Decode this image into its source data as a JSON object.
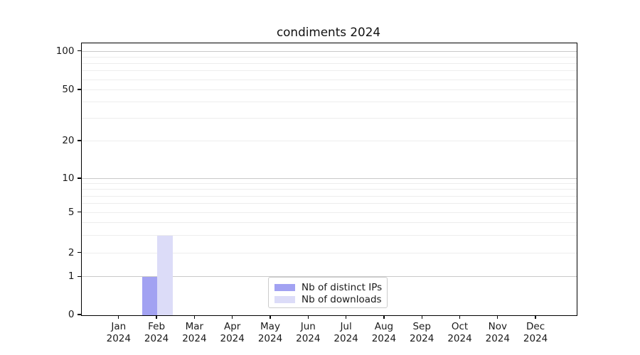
{
  "chart_data": {
    "type": "bar",
    "title": "condiments 2024",
    "categories": [
      "Jan",
      "Feb",
      "Mar",
      "Apr",
      "May",
      "Jun",
      "Jul",
      "Aug",
      "Sep",
      "Oct",
      "Nov",
      "Dec"
    ],
    "category_year": "2024",
    "series": [
      {
        "name": "Nb of distinct IPs",
        "color": "#a2a2f2",
        "values": [
          0,
          1,
          0,
          0,
          0,
          0,
          0,
          0,
          0,
          0,
          0,
          0
        ]
      },
      {
        "name": "Nb of downloads",
        "color": "#dcdcf8",
        "values": [
          0,
          3,
          0,
          0,
          0,
          0,
          0,
          0,
          0,
          0,
          0,
          0
        ]
      }
    ],
    "xlabel": "",
    "ylabel": "",
    "y_axis": {
      "scale": "symlog",
      "ticks": [
        0,
        1,
        2,
        5,
        10,
        20,
        50,
        100
      ],
      "minor_gridlines": [
        3,
        4,
        6,
        7,
        8,
        9,
        30,
        40,
        60,
        70,
        80,
        90
      ],
      "major_decades": [
        1,
        10,
        100
      ],
      "ylim": [
        0,
        117
      ]
    },
    "legend": {
      "position": "lower center",
      "entries": [
        "Nb of distinct IPs",
        "Nb of downloads"
      ]
    },
    "grid": {
      "on": true,
      "major_color": "#c9c9c9",
      "minor_color": "#ededed"
    },
    "colors": {
      "axis": "#000000",
      "text": "#1a1a1a",
      "background": "#ffffff",
      "legend_border": "#cccccc"
    }
  },
  "layout_hints": {
    "tick_fractions": {
      "0": 0,
      "1": 0.14,
      "2": 0.2275,
      "5": 0.376,
      "10": 0.501,
      "20": 0.639,
      "50": 0.827,
      "100": 0.9687
    }
  }
}
